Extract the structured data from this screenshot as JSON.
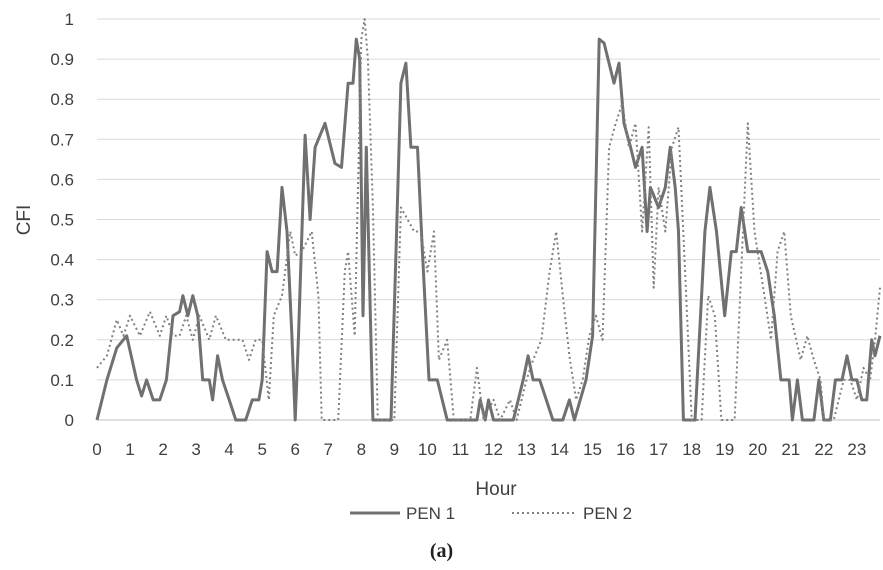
{
  "caption": "(a)",
  "chart_data": {
    "type": "line",
    "xlabel": "Hour",
    "ylabel": "CFI",
    "xlim": [
      0,
      23.7
    ],
    "ylim": [
      0,
      1
    ],
    "x_ticks": [
      "0",
      "1",
      "2",
      "3",
      "4",
      "5",
      "6",
      "7",
      "8",
      "9",
      "10",
      "11",
      "12",
      "13",
      "14",
      "15",
      "16",
      "17",
      "18",
      "19",
      "20",
      "21",
      "22",
      "23"
    ],
    "y_ticks": [
      "0",
      "0.1",
      "0.2",
      "0.3",
      "0.4",
      "0.5",
      "0.6",
      "0.7",
      "0.8",
      "0.9",
      "1"
    ],
    "grid": "horizontal",
    "legend_position": "bottom",
    "series": [
      {
        "name": "PEN 1",
        "style": "solid",
        "color": "#707070",
        "points": [
          [
            0,
            0
          ],
          [
            0.3,
            0.1
          ],
          [
            0.6,
            0.18
          ],
          [
            0.9,
            0.21
          ],
          [
            1.2,
            0.1
          ],
          [
            1.35,
            0.06
          ],
          [
            1.5,
            0.1
          ],
          [
            1.7,
            0.05
          ],
          [
            1.9,
            0.05
          ],
          [
            2.1,
            0.1
          ],
          [
            2.3,
            0.26
          ],
          [
            2.5,
            0.27
          ],
          [
            2.6,
            0.31
          ],
          [
            2.75,
            0.26
          ],
          [
            2.9,
            0.31
          ],
          [
            3.05,
            0.26
          ],
          [
            3.2,
            0.1
          ],
          [
            3.4,
            0.1
          ],
          [
            3.5,
            0.05
          ],
          [
            3.65,
            0.16
          ],
          [
            3.8,
            0.1
          ],
          [
            4.0,
            0.05
          ],
          [
            4.2,
            0
          ],
          [
            4.5,
            0
          ],
          [
            4.7,
            0.05
          ],
          [
            4.9,
            0.05
          ],
          [
            5.0,
            0.1
          ],
          [
            5.15,
            0.42
          ],
          [
            5.3,
            0.37
          ],
          [
            5.45,
            0.37
          ],
          [
            5.6,
            0.58
          ],
          [
            5.75,
            0.47
          ],
          [
            5.9,
            0.21
          ],
          [
            6.0,
            0
          ],
          [
            6.1,
            0.21
          ],
          [
            6.3,
            0.71
          ],
          [
            6.45,
            0.5
          ],
          [
            6.6,
            0.68
          ],
          [
            6.9,
            0.74
          ],
          [
            7.2,
            0.64
          ],
          [
            7.4,
            0.63
          ],
          [
            7.6,
            0.84
          ],
          [
            7.75,
            0.84
          ],
          [
            7.85,
            0.95
          ],
          [
            7.95,
            0.9
          ],
          [
            8.05,
            0.26
          ],
          [
            8.15,
            0.68
          ],
          [
            8.35,
            0
          ],
          [
            8.9,
            0
          ],
          [
            9.05,
            0.42
          ],
          [
            9.2,
            0.84
          ],
          [
            9.35,
            0.89
          ],
          [
            9.5,
            0.68
          ],
          [
            9.7,
            0.68
          ],
          [
            9.85,
            0.42
          ],
          [
            10.05,
            0.1
          ],
          [
            10.3,
            0.1
          ],
          [
            10.6,
            0
          ],
          [
            11.3,
            0
          ],
          [
            11.5,
            0
          ],
          [
            11.6,
            0.05
          ],
          [
            11.75,
            0
          ],
          [
            11.85,
            0.05
          ],
          [
            12.0,
            0
          ],
          [
            12.6,
            0
          ],
          [
            12.9,
            0.1
          ],
          [
            13.05,
            0.16
          ],
          [
            13.2,
            0.1
          ],
          [
            13.4,
            0.1
          ],
          [
            13.6,
            0.05
          ],
          [
            13.8,
            0
          ],
          [
            14.1,
            0
          ],
          [
            14.3,
            0.05
          ],
          [
            14.45,
            0
          ],
          [
            14.8,
            0.1
          ],
          [
            15.0,
            0.21
          ],
          [
            15.2,
            0.95
          ],
          [
            15.35,
            0.94
          ],
          [
            15.65,
            0.84
          ],
          [
            15.8,
            0.89
          ],
          [
            15.95,
            0.74
          ],
          [
            16.15,
            0.68
          ],
          [
            16.3,
            0.63
          ],
          [
            16.5,
            0.68
          ],
          [
            16.65,
            0.47
          ],
          [
            16.75,
            0.58
          ],
          [
            17.0,
            0.53
          ],
          [
            17.2,
            0.58
          ],
          [
            17.35,
            0.68
          ],
          [
            17.5,
            0.58
          ],
          [
            17.6,
            0.47
          ],
          [
            17.75,
            0
          ],
          [
            18.1,
            0
          ],
          [
            18.3,
            0.31
          ],
          [
            18.4,
            0.47
          ],
          [
            18.55,
            0.58
          ],
          [
            18.75,
            0.47
          ],
          [
            19.0,
            0.26
          ],
          [
            19.2,
            0.42
          ],
          [
            19.35,
            0.42
          ],
          [
            19.5,
            0.53
          ],
          [
            19.7,
            0.42
          ],
          [
            19.9,
            0.42
          ],
          [
            20.1,
            0.42
          ],
          [
            20.3,
            0.37
          ],
          [
            20.5,
            0.26
          ],
          [
            20.7,
            0.1
          ],
          [
            20.95,
            0.1
          ],
          [
            21.05,
            0
          ],
          [
            21.2,
            0.1
          ],
          [
            21.35,
            0
          ],
          [
            21.7,
            0
          ],
          [
            21.85,
            0.1
          ],
          [
            22.0,
            0
          ],
          [
            22.2,
            0
          ],
          [
            22.35,
            0.1
          ],
          [
            22.55,
            0.1
          ],
          [
            22.7,
            0.16
          ],
          [
            22.85,
            0.1
          ],
          [
            23.0,
            0.1
          ],
          [
            23.15,
            0.05
          ],
          [
            23.3,
            0.05
          ],
          [
            23.45,
            0.2
          ],
          [
            23.55,
            0.16
          ],
          [
            23.7,
            0.21
          ]
        ]
      },
      {
        "name": "PEN 2",
        "style": "dotted",
        "color": "#808080",
        "points": [
          [
            0,
            0.13
          ],
          [
            0.3,
            0.16
          ],
          [
            0.6,
            0.25
          ],
          [
            0.8,
            0.21
          ],
          [
            1.0,
            0.26
          ],
          [
            1.3,
            0.21
          ],
          [
            1.6,
            0.27
          ],
          [
            1.9,
            0.21
          ],
          [
            2.1,
            0.26
          ],
          [
            2.3,
            0.21
          ],
          [
            2.5,
            0.21
          ],
          [
            2.7,
            0.26
          ],
          [
            2.9,
            0.2
          ],
          [
            3.1,
            0.26
          ],
          [
            3.4,
            0.2
          ],
          [
            3.6,
            0.26
          ],
          [
            3.9,
            0.2
          ],
          [
            4.1,
            0.2
          ],
          [
            4.4,
            0.2
          ],
          [
            4.6,
            0.15
          ],
          [
            4.8,
            0.2
          ],
          [
            5.0,
            0.2
          ],
          [
            5.2,
            0.05
          ],
          [
            5.35,
            0.26
          ],
          [
            5.6,
            0.31
          ],
          [
            5.85,
            0.47
          ],
          [
            6.0,
            0.41
          ],
          [
            6.2,
            0.42
          ],
          [
            6.5,
            0.47
          ],
          [
            6.7,
            0.31
          ],
          [
            6.8,
            0
          ],
          [
            7.3,
            0
          ],
          [
            7.5,
            0.37
          ],
          [
            7.6,
            0.42
          ],
          [
            7.8,
            0.21
          ],
          [
            8.0,
            0.95
          ],
          [
            8.1,
            1.0
          ],
          [
            8.2,
            0.9
          ],
          [
            8.35,
            0.53
          ],
          [
            8.5,
            0
          ],
          [
            9.0,
            0
          ],
          [
            9.2,
            0.53
          ],
          [
            9.4,
            0.5
          ],
          [
            9.6,
            0.47
          ],
          [
            9.8,
            0.47
          ],
          [
            10.0,
            0.37
          ],
          [
            10.2,
            0.47
          ],
          [
            10.35,
            0.15
          ],
          [
            10.6,
            0.2
          ],
          [
            10.8,
            0
          ],
          [
            11.3,
            0
          ],
          [
            11.5,
            0.13
          ],
          [
            11.7,
            0
          ],
          [
            12.0,
            0.05
          ],
          [
            12.2,
            0
          ],
          [
            12.5,
            0.05
          ],
          [
            12.7,
            0
          ],
          [
            13.0,
            0.1
          ],
          [
            13.2,
            0.15
          ],
          [
            13.45,
            0.2
          ],
          [
            13.7,
            0.37
          ],
          [
            13.9,
            0.47
          ],
          [
            14.1,
            0.31
          ],
          [
            14.3,
            0.16
          ],
          [
            14.5,
            0.05
          ],
          [
            14.7,
            0.1
          ],
          [
            14.9,
            0.21
          ],
          [
            15.1,
            0.26
          ],
          [
            15.3,
            0.2
          ],
          [
            15.5,
            0.68
          ],
          [
            15.7,
            0.74
          ],
          [
            15.9,
            0.79
          ],
          [
            16.1,
            0.68
          ],
          [
            16.3,
            0.74
          ],
          [
            16.5,
            0.47
          ],
          [
            16.7,
            0.73
          ],
          [
            16.85,
            0.33
          ],
          [
            17.0,
            0.58
          ],
          [
            17.2,
            0.47
          ],
          [
            17.4,
            0.68
          ],
          [
            17.6,
            0.73
          ],
          [
            17.8,
            0.37
          ],
          [
            18.0,
            0
          ],
          [
            18.3,
            0
          ],
          [
            18.5,
            0.31
          ],
          [
            18.7,
            0.26
          ],
          [
            18.9,
            0
          ],
          [
            19.3,
            0
          ],
          [
            19.5,
            0.37
          ],
          [
            19.7,
            0.74
          ],
          [
            19.9,
            0.47
          ],
          [
            20.2,
            0.31
          ],
          [
            20.4,
            0.2
          ],
          [
            20.6,
            0.42
          ],
          [
            20.8,
            0.47
          ],
          [
            21.0,
            0.26
          ],
          [
            21.3,
            0.15
          ],
          [
            21.5,
            0.21
          ],
          [
            21.7,
            0.15
          ],
          [
            21.9,
            0.1
          ],
          [
            22.0,
            0
          ],
          [
            22.3,
            0
          ],
          [
            22.6,
            0.1
          ],
          [
            22.8,
            0.1
          ],
          [
            23.0,
            0.05
          ],
          [
            23.2,
            0.13
          ],
          [
            23.4,
            0.1
          ],
          [
            23.55,
            0.2
          ],
          [
            23.7,
            0.33
          ]
        ]
      }
    ]
  }
}
